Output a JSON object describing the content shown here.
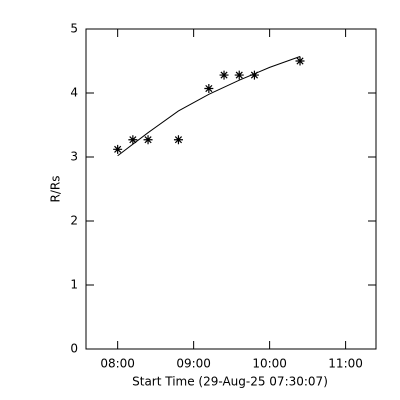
{
  "chart_data": {
    "type": "scatter",
    "x_label": "Start Time (29-Aug-25 07:30:07)",
    "y_label": "R/Rs",
    "series": [
      {
        "x": [
          480,
          492,
          504,
          528,
          552,
          564,
          576,
          588,
          624
        ],
        "values": [
          3.12,
          3.27,
          3.27,
          3.27,
          4.07,
          4.28,
          4.28,
          4.28,
          4.5
        ],
        "color": "#000000",
        "marker": "asterisk"
      },
      {
        "x": [
          480,
          504,
          528,
          552,
          576,
          600,
          624
        ],
        "values": [
          3.02,
          3.38,
          3.72,
          3.98,
          4.2,
          4.4,
          4.57
        ],
        "color": "#000000",
        "marker": "line"
      }
    ],
    "xlim": [
      455,
      684
    ],
    "xticks": [
      {
        "value": 480,
        "label": "08:00"
      },
      {
        "value": 540,
        "label": "09:00"
      },
      {
        "value": 600,
        "label": "10:00"
      },
      {
        "value": 660,
        "label": "11:00"
      }
    ],
    "ylim": [
      0,
      5
    ],
    "yticks": [
      0,
      1,
      2,
      3,
      4,
      5
    ]
  }
}
